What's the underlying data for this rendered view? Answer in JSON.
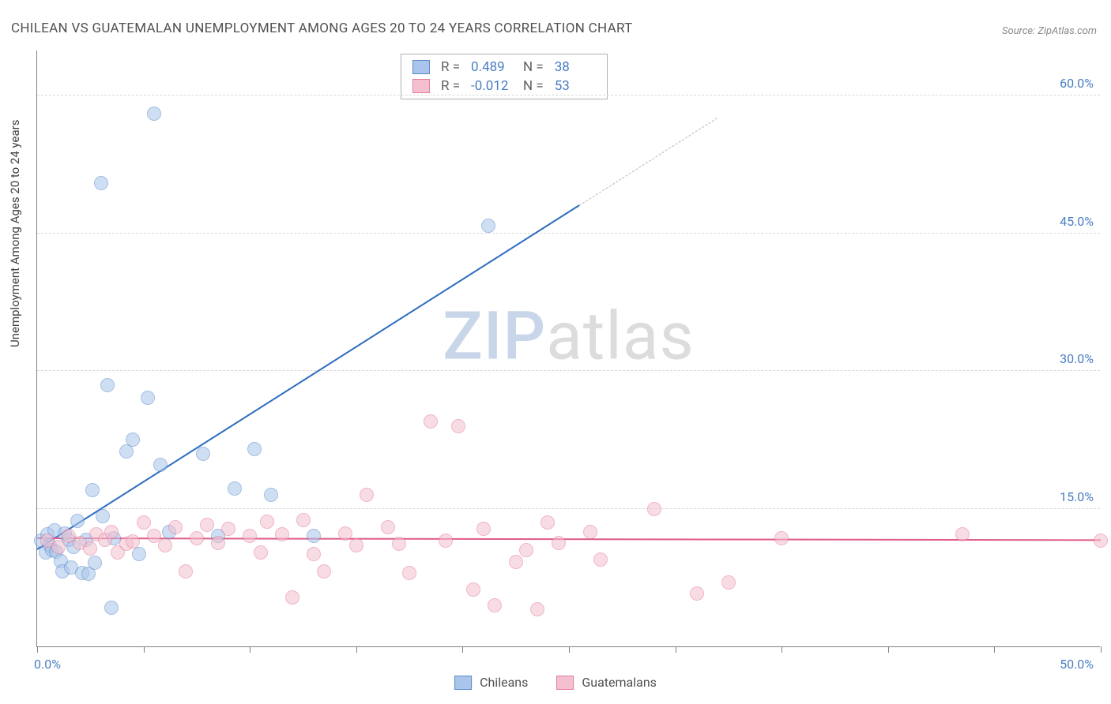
{
  "title": "CHILEAN VS GUATEMALAN UNEMPLOYMENT AMONG AGES 20 TO 24 YEARS CORRELATION CHART",
  "source": "Source: ZipAtlas.com",
  "ylabel": "Unemployment Among Ages 20 to 24 years",
  "watermark": {
    "part1": "ZIP",
    "part2": "atlas"
  },
  "chart": {
    "type": "scatter",
    "background_color": "#ffffff",
    "grid_color": "#d8d8d8",
    "axis_color": "#808080",
    "tick_label_color": "#4a7ec2",
    "label_color": "#404040",
    "xlim": [
      0,
      50
    ],
    "ylim": [
      0,
      65
    ],
    "x_ticks": [
      0,
      5,
      10,
      15,
      20,
      25,
      30,
      35,
      40,
      45,
      50
    ],
    "x_tick_labels": {
      "0": "0.0%",
      "50": "50.0%"
    },
    "y_ticks": [
      15,
      30,
      45,
      60
    ],
    "y_tick_labels": {
      "15": "15.0%",
      "30": "30.0%",
      "45": "45.0%",
      "60": "60.0%"
    },
    "marker_radius": 9,
    "marker_opacity": 0.55,
    "marker_border_width": 1.2,
    "trend_line_width": 2.2
  },
  "series": [
    {
      "name": "Chileans",
      "color_fill": "#a9c5eb",
      "color_stroke": "#5b8ac9",
      "trend_color": "#2d6cc0",
      "R": "0.489",
      "N": "38",
      "trend": {
        "x1": 0,
        "y1": 10.5,
        "x2": 25.5,
        "y2": 48,
        "dash_extend_to_x": 32
      },
      "points": [
        [
          0.2,
          11.5
        ],
        [
          0.4,
          10.2
        ],
        [
          0.5,
          12.2
        ],
        [
          0.6,
          11.0
        ],
        [
          0.7,
          10.5
        ],
        [
          0.8,
          12.6
        ],
        [
          0.9,
          10.3
        ],
        [
          1.1,
          9.3
        ],
        [
          1.2,
          8.2
        ],
        [
          1.3,
          12.3
        ],
        [
          1.5,
          11.6
        ],
        [
          1.6,
          8.6
        ],
        [
          1.7,
          10.8
        ],
        [
          1.9,
          13.7
        ],
        [
          2.1,
          8.0
        ],
        [
          2.3,
          11.6
        ],
        [
          2.4,
          7.9
        ],
        [
          2.6,
          17.0
        ],
        [
          2.7,
          9.1
        ],
        [
          3.0,
          50.5
        ],
        [
          3.1,
          14.2
        ],
        [
          3.3,
          28.5
        ],
        [
          3.5,
          4.2
        ],
        [
          3.6,
          11.8
        ],
        [
          4.2,
          21.2
        ],
        [
          4.5,
          22.5
        ],
        [
          4.8,
          10.1
        ],
        [
          5.2,
          27.1
        ],
        [
          5.5,
          58.0
        ],
        [
          5.8,
          19.8
        ],
        [
          6.2,
          12.5
        ],
        [
          7.8,
          21.0
        ],
        [
          8.5,
          12.0
        ],
        [
          9.3,
          17.2
        ],
        [
          10.2,
          21.5
        ],
        [
          11.0,
          16.5
        ],
        [
          13.0,
          12.0
        ],
        [
          21.2,
          45.8
        ]
      ]
    },
    {
      "name": "Guatemalans",
      "color_fill": "#f4c0cf",
      "color_stroke": "#e47a9b",
      "trend_color": "#e05b87",
      "R": "-0.012",
      "N": "53",
      "trend": {
        "x1": 0,
        "y1": 11.7,
        "x2": 50,
        "y2": 11.5
      },
      "points": [
        [
          0.5,
          11.5
        ],
        [
          1.0,
          10.8
        ],
        [
          1.5,
          12.0
        ],
        [
          2.0,
          11.3
        ],
        [
          2.5,
          10.7
        ],
        [
          2.8,
          12.2
        ],
        [
          3.2,
          11.6
        ],
        [
          3.5,
          12.5
        ],
        [
          3.8,
          10.2
        ],
        [
          4.2,
          11.2
        ],
        [
          4.5,
          11.4
        ],
        [
          5.0,
          13.5
        ],
        [
          5.5,
          12.0
        ],
        [
          6.0,
          11.0
        ],
        [
          6.5,
          13.0
        ],
        [
          7.0,
          8.2
        ],
        [
          7.5,
          11.8
        ],
        [
          8.0,
          13.2
        ],
        [
          8.5,
          11.3
        ],
        [
          9.0,
          12.8
        ],
        [
          10.0,
          12.0
        ],
        [
          10.5,
          10.2
        ],
        [
          10.8,
          13.6
        ],
        [
          11.5,
          12.2
        ],
        [
          12.0,
          5.3
        ],
        [
          12.5,
          13.8
        ],
        [
          13.0,
          10.1
        ],
        [
          13.5,
          8.2
        ],
        [
          14.5,
          12.3
        ],
        [
          15.0,
          11.0
        ],
        [
          15.5,
          16.5
        ],
        [
          16.5,
          13.0
        ],
        [
          17.0,
          11.2
        ],
        [
          17.5,
          8.0
        ],
        [
          18.5,
          24.5
        ],
        [
          19.2,
          11.5
        ],
        [
          19.8,
          24.0
        ],
        [
          20.5,
          6.2
        ],
        [
          21.0,
          12.8
        ],
        [
          21.5,
          4.5
        ],
        [
          22.5,
          9.2
        ],
        [
          23.0,
          10.5
        ],
        [
          23.5,
          4.0
        ],
        [
          24.0,
          13.5
        ],
        [
          24.5,
          11.3
        ],
        [
          26.0,
          12.5
        ],
        [
          26.5,
          9.5
        ],
        [
          29.0,
          15.0
        ],
        [
          31.0,
          5.8
        ],
        [
          32.5,
          7.0
        ],
        [
          35.0,
          11.8
        ],
        [
          43.5,
          12.2
        ],
        [
          50.0,
          11.5
        ]
      ]
    }
  ],
  "stats_box": {
    "rows": [
      {
        "series": 0,
        "R_label": "R =",
        "N_label": "N ="
      },
      {
        "series": 1,
        "R_label": "R =",
        "N_label": "N ="
      }
    ]
  },
  "legend": {
    "items": [
      {
        "series": 0
      },
      {
        "series": 1
      }
    ]
  }
}
